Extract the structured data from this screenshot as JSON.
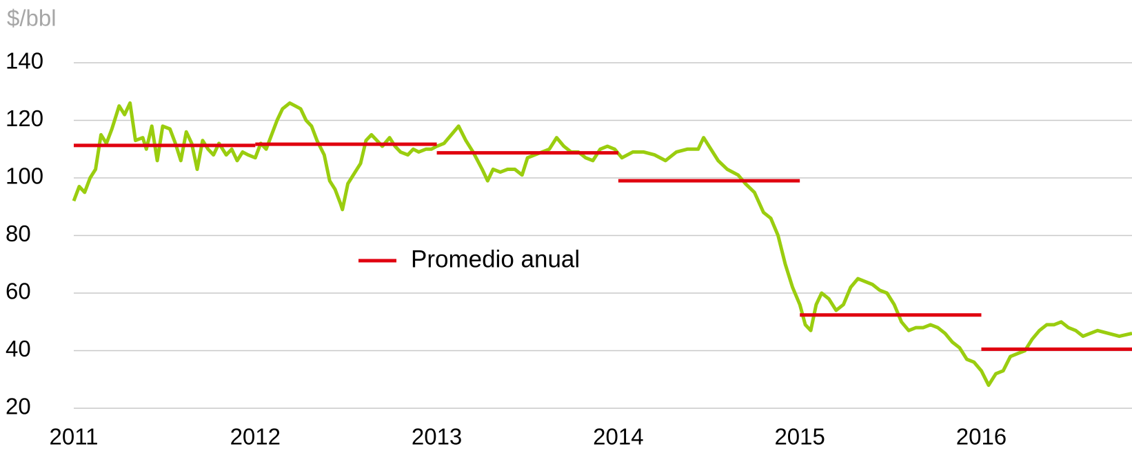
{
  "chart_data": {
    "type": "line",
    "ylabel": "$/bbl",
    "xlim": [
      2011,
      2016.83
    ],
    "ylim": [
      20,
      140
    ],
    "xticks": [
      2011,
      2012,
      2013,
      2014,
      2015,
      2016
    ],
    "yticks": [
      20,
      40,
      60,
      80,
      100,
      120,
      140
    ],
    "grid": true,
    "series": [
      {
        "color": "#9acd0f",
        "x": [
          2011.0,
          2011.03,
          2011.06,
          2011.09,
          2011.12,
          2011.15,
          2011.18,
          2011.21,
          2011.25,
          2011.28,
          2011.31,
          2011.34,
          2011.38,
          2011.4,
          2011.43,
          2011.46,
          2011.49,
          2011.53,
          2011.56,
          2011.59,
          2011.62,
          2011.65,
          2011.68,
          2011.71,
          2011.74,
          2011.77,
          2011.8,
          2011.84,
          2011.87,
          2011.9,
          2011.93,
          2011.96,
          2012.0,
          2012.03,
          2012.06,
          2012.09,
          2012.12,
          2012.15,
          2012.19,
          2012.22,
          2012.25,
          2012.28,
          2012.31,
          2012.34,
          2012.38,
          2012.41,
          2012.44,
          2012.47,
          2012.48,
          2012.51,
          2012.55,
          2012.58,
          2012.61,
          2012.64,
          2012.67,
          2012.7,
          2012.74,
          2012.77,
          2012.8,
          2012.84,
          2012.87,
          2012.9,
          2012.94,
          2012.97,
          2013.0,
          2013.04,
          2013.08,
          2013.12,
          2013.16,
          2013.2,
          2013.25,
          2013.28,
          2013.31,
          2013.35,
          2013.39,
          2013.43,
          2013.47,
          2013.5,
          2013.54,
          2013.58,
          2013.62,
          2013.66,
          2013.7,
          2013.74,
          2013.78,
          2013.82,
          2013.86,
          2013.9,
          2013.94,
          2013.98,
          2014.02,
          2014.08,
          2014.14,
          2014.2,
          2014.26,
          2014.32,
          2014.38,
          2014.44,
          2014.47,
          2014.5,
          2014.55,
          2014.6,
          2014.66,
          2014.7,
          2014.75,
          2014.8,
          2014.84,
          2014.88,
          2014.92,
          2014.96,
          2015.0,
          2015.03,
          2015.06,
          2015.09,
          2015.12,
          2015.16,
          2015.2,
          2015.24,
          2015.28,
          2015.32,
          2015.36,
          2015.4,
          2015.44,
          2015.48,
          2015.52,
          2015.56,
          2015.6,
          2015.64,
          2015.68,
          2015.72,
          2015.76,
          2015.8,
          2015.84,
          2015.88,
          2015.92,
          2015.96,
          2016.0,
          2016.04,
          2016.08,
          2016.12,
          2016.16,
          2016.2,
          2016.24,
          2016.28,
          2016.32,
          2016.36,
          2016.4,
          2016.44,
          2016.48,
          2016.52,
          2016.56,
          2016.6,
          2016.64,
          2016.7,
          2016.76,
          2016.83
        ],
        "values": [
          92,
          97,
          95,
          100,
          103,
          115,
          112,
          117,
          125,
          122,
          126,
          113,
          114,
          110,
          118,
          106,
          118,
          117,
          112,
          106,
          116,
          112,
          103,
          113,
          110,
          108,
          112,
          108,
          110,
          106,
          109,
          108,
          107,
          112,
          110,
          115,
          120,
          124,
          126,
          125,
          124,
          120,
          118,
          113,
          108,
          99,
          96,
          91,
          89,
          98,
          102,
          105,
          113,
          115,
          113,
          111,
          114,
          111,
          109,
          108,
          110,
          109,
          110,
          110,
          111,
          112,
          115,
          118,
          113,
          109,
          103,
          99,
          103,
          102,
          103,
          103,
          101,
          107,
          108,
          109,
          110,
          114,
          111,
          109,
          109,
          107,
          106,
          110,
          111,
          110,
          107,
          109,
          109,
          108,
          106,
          109,
          110,
          110,
          114,
          111,
          106,
          103,
          101,
          98,
          95,
          88,
          86,
          80,
          70,
          62,
          56,
          49,
          47,
          56,
          60,
          58,
          54,
          56,
          62,
          65,
          64,
          63,
          61,
          60,
          56,
          50,
          47,
          48,
          48,
          49,
          48,
          46,
          43,
          41,
          37,
          36,
          33,
          28,
          32,
          33,
          38,
          39,
          40,
          44,
          47,
          49,
          49,
          50,
          48,
          47,
          45,
          46,
          47,
          46,
          45,
          46
        ]
      },
      {
        "name": "Promedio anual",
        "color": "#e0000f",
        "style": "annual",
        "x": [
          2011,
          2012,
          2013,
          2014,
          2015,
          2016
        ],
        "values": [
          111.3,
          111.7,
          108.7,
          99,
          52.4,
          40.5
        ]
      }
    ]
  }
}
